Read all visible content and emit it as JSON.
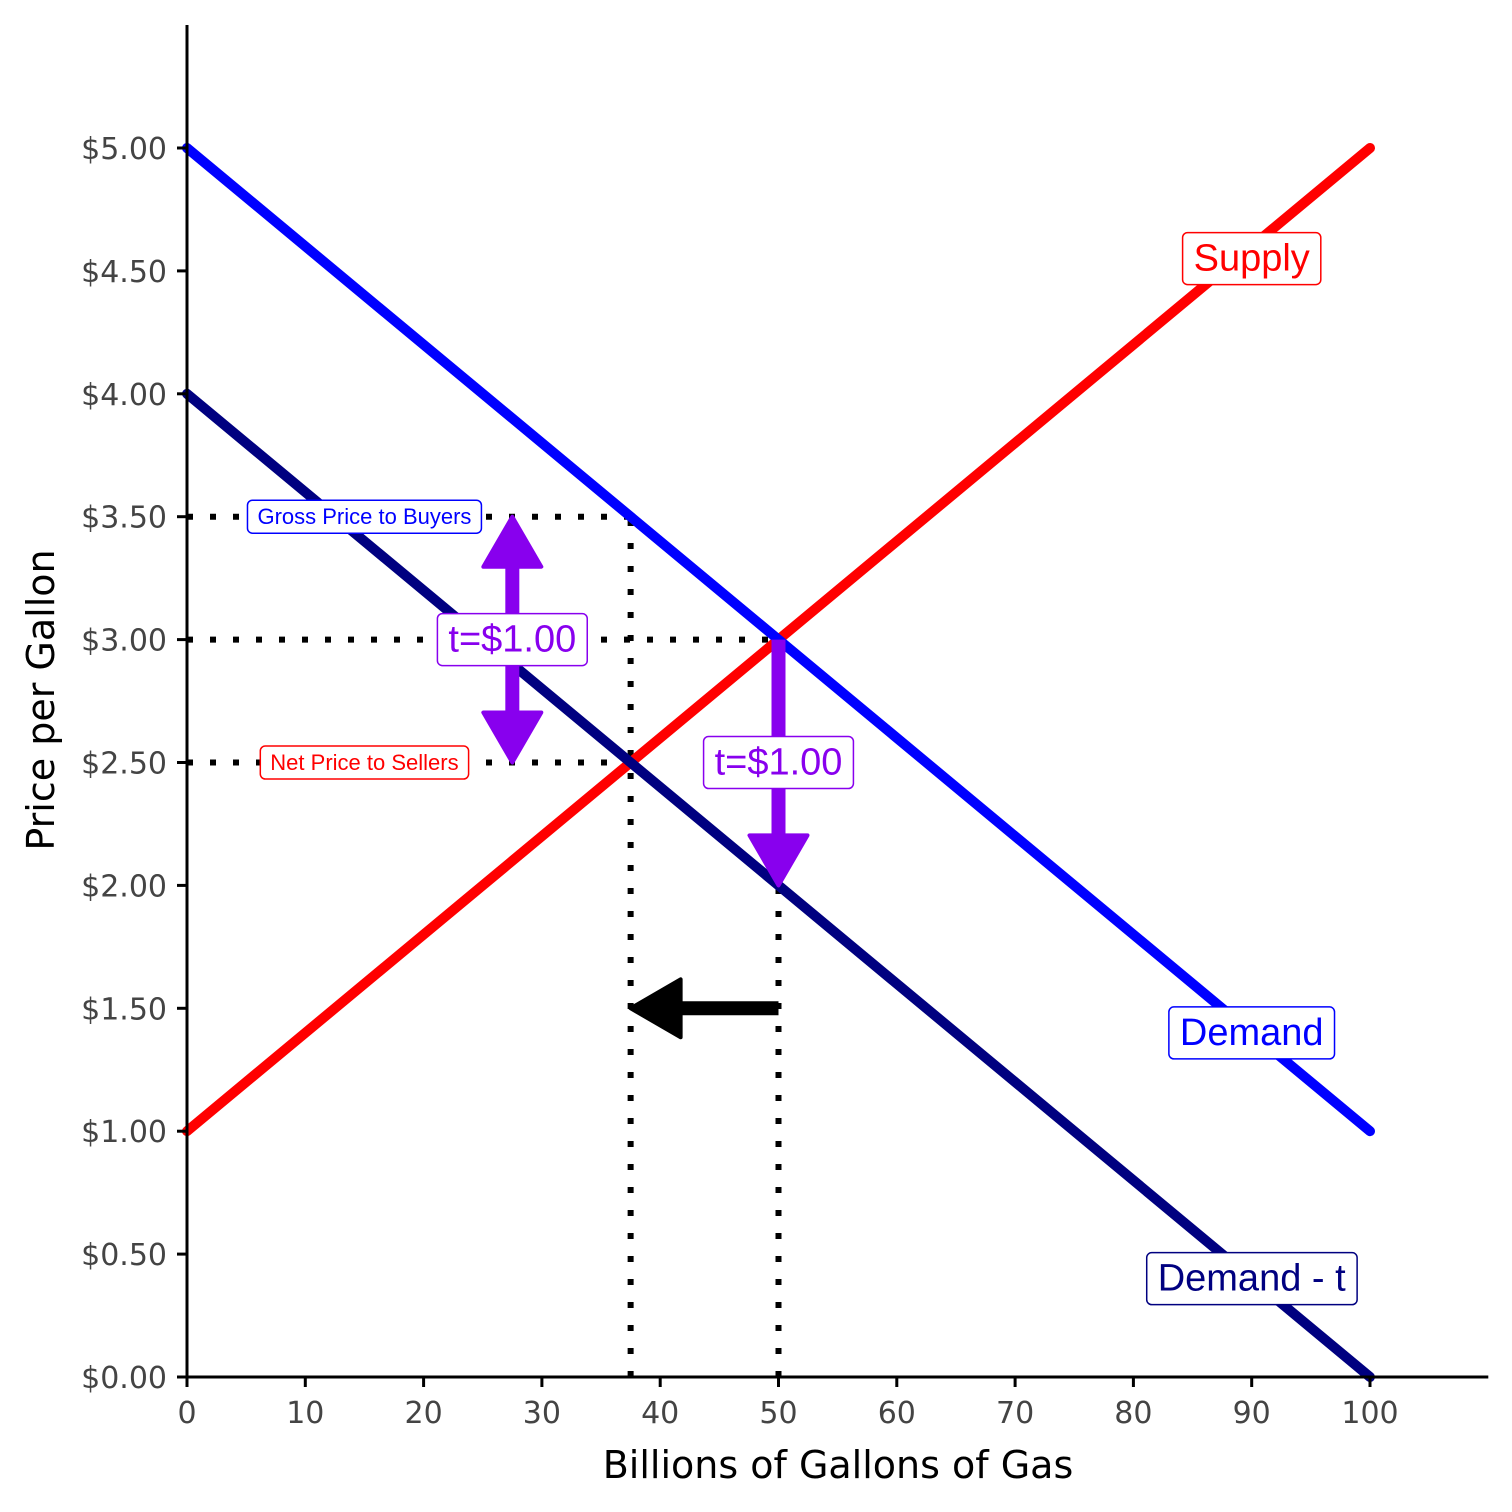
{
  "chart_data": {
    "type": "line",
    "xlabel": "Billions of Gallons of Gas",
    "ylabel": "Price per Gallon",
    "xlim": [
      0,
      110
    ],
    "ylim": [
      0,
      5.5
    ],
    "x_ticks": [
      0,
      10,
      20,
      30,
      40,
      50,
      60,
      70,
      80,
      90,
      100
    ],
    "x_tick_labels": [
      "0",
      "10",
      "20",
      "30",
      "40",
      "50",
      "60",
      "70",
      "80",
      "90",
      "100"
    ],
    "y_ticks": [
      0,
      0.5,
      1,
      1.5,
      2,
      2.5,
      3,
      3.5,
      4,
      4.5,
      5
    ],
    "y_tick_labels": [
      "$0.00",
      "$0.50",
      "$1.00",
      "$1.50",
      "$2.00",
      "$2.50",
      "$3.00",
      "$3.50",
      "$4.00",
      "$4.50",
      "$5.00"
    ],
    "grid": false,
    "series": [
      {
        "name": "Supply",
        "color": "#ff0000",
        "points": [
          [
            0,
            1
          ],
          [
            100,
            5
          ]
        ]
      },
      {
        "name": "Demand",
        "color": "#0000ff",
        "points": [
          [
            0,
            5
          ],
          [
            100,
            1
          ]
        ]
      },
      {
        "name": "Demand - t",
        "color": "#000080",
        "points": [
          [
            0,
            4
          ],
          [
            100,
            0
          ]
        ]
      }
    ],
    "labels": [
      {
        "text": "Supply",
        "x": 90,
        "y": 4.55,
        "color": "#ff0000",
        "size": "large"
      },
      {
        "text": "Demand",
        "x": 90,
        "y": 1.4,
        "color": "#0000ff",
        "size": "large"
      },
      {
        "text": "Demand - t",
        "x": 90,
        "y": 0.4,
        "color": "#000080",
        "size": "large"
      },
      {
        "text": "Gross Price to Buyers",
        "x": 15,
        "y": 3.5,
        "color": "#0000ff",
        "size": "small"
      },
      {
        "text": "Net Price to Sellers",
        "x": 15,
        "y": 2.5,
        "color": "#ff0000",
        "size": "small"
      },
      {
        "text": "t=$1.00",
        "x": 27.5,
        "y": 3.0,
        "color": "#8800ee",
        "size": "large"
      },
      {
        "text": "t=$1.00",
        "x": 50,
        "y": 2.5,
        "color": "#8800ee",
        "size": "large"
      }
    ],
    "reference_segments": [
      {
        "from": [
          0,
          3.5
        ],
        "to": [
          37.5,
          3.5
        ]
      },
      {
        "from": [
          0,
          3
        ],
        "to": [
          50,
          3
        ]
      },
      {
        "from": [
          0,
          2.5
        ],
        "to": [
          37.5,
          2.5
        ]
      },
      {
        "from": [
          37.5,
          0
        ],
        "to": [
          37.5,
          3.5
        ]
      },
      {
        "from": [
          50,
          0
        ],
        "to": [
          50,
          3
        ]
      }
    ],
    "arrows": [
      {
        "from": [
          27.5,
          2.5
        ],
        "to": [
          27.5,
          3.5
        ],
        "both_ends": true,
        "color": "#8800ee"
      },
      {
        "from": [
          50,
          3.0
        ],
        "to": [
          50,
          2.0
        ],
        "both_ends": false,
        "color": "#8800ee"
      },
      {
        "from": [
          50,
          1.5
        ],
        "to": [
          37.5,
          1.5
        ],
        "both_ends": false,
        "color": "#000000"
      }
    ]
  }
}
